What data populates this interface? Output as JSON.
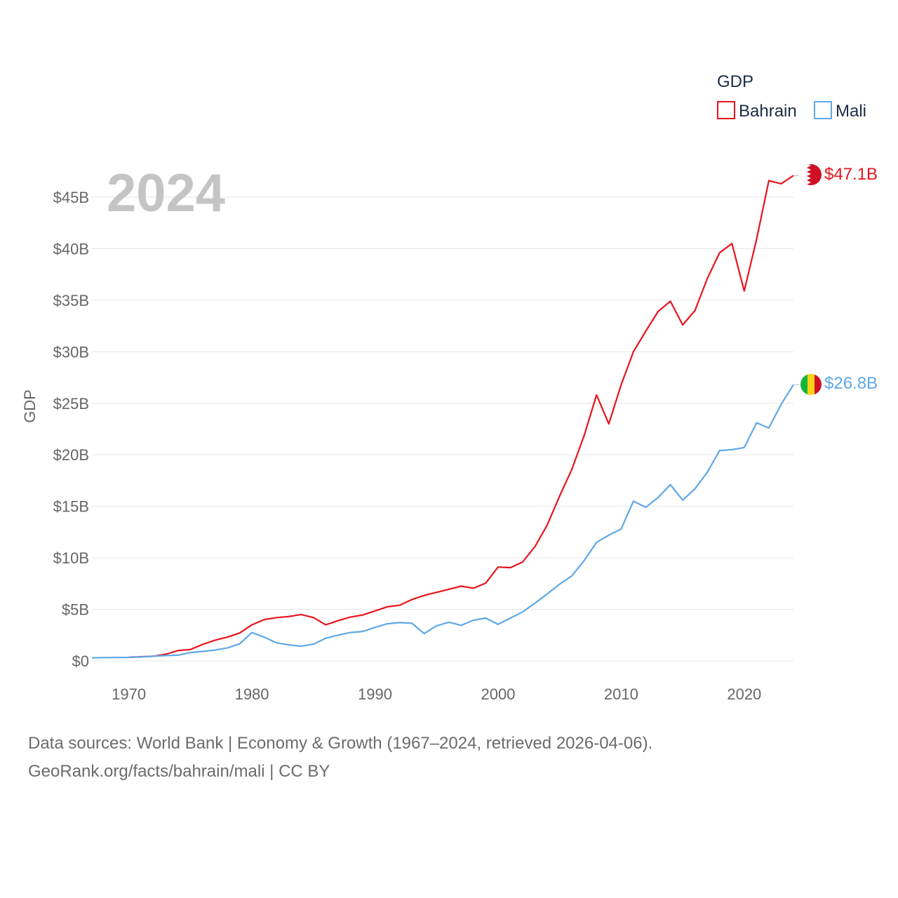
{
  "chart_data": {
    "type": "line",
    "title": "",
    "year_label": "2024",
    "ylabel": "GDP",
    "xlim": [
      1967,
      2024
    ],
    "ylim": [
      0,
      47.5
    ],
    "y_ticks": [
      0,
      5,
      10,
      15,
      20,
      25,
      30,
      35,
      40,
      45
    ],
    "y_tick_labels": [
      "$0",
      "$5B",
      "$10B",
      "$15B",
      "$20B",
      "$25B",
      "$30B",
      "$35B",
      "$40B",
      "$45B"
    ],
    "x_ticks": [
      1970,
      1980,
      1990,
      2000,
      2010,
      2020
    ],
    "x_tick_labels": [
      "1970",
      "1980",
      "1990",
      "2000",
      "2010",
      "2020"
    ],
    "legend": {
      "title": "GDP",
      "position": "top-right"
    },
    "series": [
      {
        "name": "Bahrain",
        "color": "#e8141c",
        "end_label": "$47.1B",
        "x": [
          1970,
          1971,
          1972,
          1973,
          1974,
          1975,
          1976,
          1977,
          1978,
          1979,
          1980,
          1981,
          1982,
          1983,
          1984,
          1985,
          1986,
          1987,
          1988,
          1989,
          1990,
          1991,
          1992,
          1993,
          1994,
          1995,
          1996,
          1997,
          1998,
          1999,
          2000,
          2001,
          2002,
          2003,
          2004,
          2005,
          2006,
          2007,
          2008,
          2009,
          2010,
          2011,
          2012,
          2013,
          2014,
          2015,
          2016,
          2017,
          2018,
          2019,
          2020,
          2021,
          2022,
          2023,
          2024
        ],
        "values": [
          0.35,
          0.4,
          0.45,
          0.65,
          1.0,
          1.1,
          1.6,
          2.0,
          2.3,
          2.7,
          3.5,
          4.0,
          4.2,
          4.3,
          4.5,
          4.2,
          3.5,
          3.9,
          4.25,
          4.45,
          4.85,
          5.25,
          5.4,
          5.95,
          6.35,
          6.65,
          6.95,
          7.25,
          7.05,
          7.55,
          9.1,
          9.05,
          9.6,
          11.1,
          13.2,
          16.0,
          18.6,
          21.9,
          25.8,
          23.0,
          26.8,
          30.0,
          32.0,
          33.9,
          34.9,
          32.6,
          34.0,
          37.1,
          39.6,
          40.5,
          35.9,
          40.9,
          46.6,
          46.3,
          47.1
        ]
      },
      {
        "name": "Mali",
        "color": "#5ea8e6",
        "end_label": "$26.8B",
        "x": [
          1967,
          1968,
          1969,
          1970,
          1971,
          1972,
          1973,
          1974,
          1975,
          1976,
          1977,
          1978,
          1979,
          1980,
          1981,
          1982,
          1983,
          1984,
          1985,
          1986,
          1987,
          1988,
          1989,
          1990,
          1991,
          1992,
          1993,
          1994,
          1995,
          1996,
          1997,
          1998,
          1999,
          2000,
          2001,
          2002,
          2003,
          2004,
          2005,
          2006,
          2007,
          2008,
          2009,
          2010,
          2011,
          2012,
          2013,
          2014,
          2015,
          2016,
          2017,
          2018,
          2019,
          2020,
          2021,
          2022,
          2023,
          2024
        ],
        "values": [
          0.3,
          0.32,
          0.33,
          0.34,
          0.38,
          0.45,
          0.52,
          0.55,
          0.8,
          0.92,
          1.05,
          1.25,
          1.65,
          2.75,
          2.3,
          1.75,
          1.55,
          1.42,
          1.62,
          2.2,
          2.5,
          2.75,
          2.85,
          3.25,
          3.6,
          3.72,
          3.65,
          2.65,
          3.4,
          3.75,
          3.45,
          3.95,
          4.15,
          3.55,
          4.15,
          4.75,
          5.6,
          6.5,
          7.45,
          8.25,
          9.75,
          11.5,
          12.2,
          12.8,
          15.5,
          14.9,
          15.85,
          17.1,
          15.6,
          16.7,
          18.3,
          20.4,
          20.5,
          20.7,
          23.1,
          22.6,
          24.9,
          26.8
        ]
      }
    ]
  },
  "footer": {
    "line1": "Data sources: World Bank | Economy & Growth (1967–2024, retrieved 2026-04-06).",
    "line2": "GeoRank.org/facts/bahrain/mali | CC BY"
  }
}
